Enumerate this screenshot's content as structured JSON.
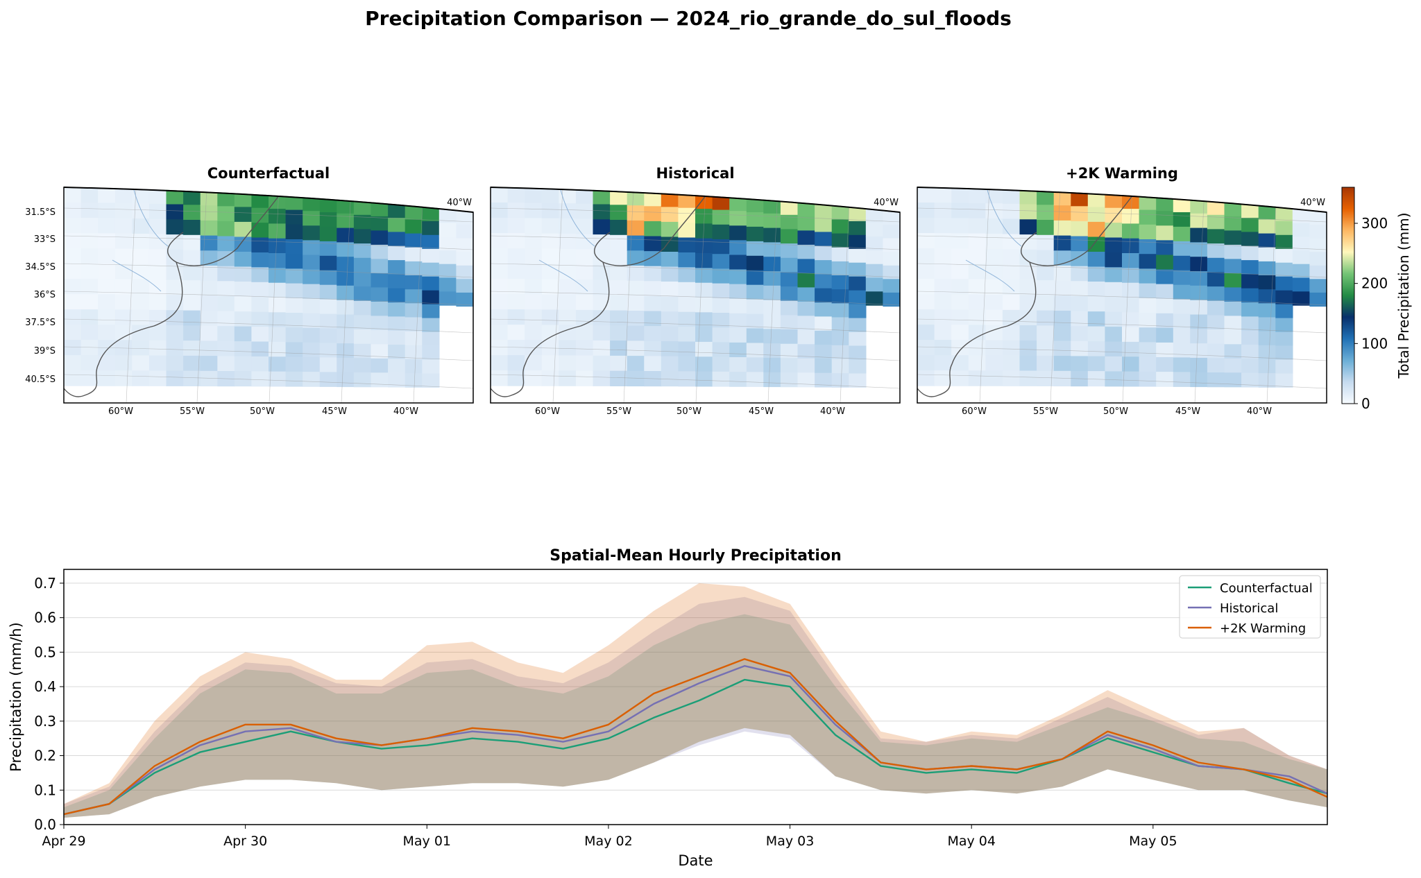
{
  "figure": {
    "title": "Precipitation Comparison — 2024_rio_grande_do_sul_floods"
  },
  "maps": {
    "panels": [
      {
        "title": "Counterfactual"
      },
      {
        "title": "Historical"
      },
      {
        "title": "+2K Warming"
      }
    ],
    "lat_ticks": [
      "31.5°S",
      "33°S",
      "34.5°S",
      "36°S",
      "37.5°S",
      "39°S",
      "40.5°S"
    ],
    "lon_ticks": [
      "60°W",
      "55°W",
      "50°W",
      "45°W",
      "40°W"
    ],
    "corner_lon_label": "40°W",
    "colorbar": {
      "label": "Total Precipitation (mm)",
      "ticks": [
        "0",
        "100",
        "200",
        "300"
      ],
      "range": [
        0,
        360
      ],
      "colors": [
        "#f7fbff",
        "#c6dbef",
        "#6baed6",
        "#2171b5",
        "#08306b",
        "#238b45",
        "#74c476",
        "#fff7bc",
        "#fdb863",
        "#e66101",
        "#a63603"
      ]
    }
  },
  "chart_data": {
    "type": "line",
    "title": "Spatial-Mean Hourly Precipitation",
    "xlabel": "Date",
    "ylabel": "Precipitation (mm/h)",
    "ylim": [
      0,
      0.74
    ],
    "yticks": [
      "0.0",
      "0.1",
      "0.2",
      "0.3",
      "0.4",
      "0.5",
      "0.6",
      "0.7"
    ],
    "xticks": [
      "Apr 29",
      "Apr 30",
      "May 01",
      "May 02",
      "May 03",
      "May 04",
      "May 05"
    ],
    "xlim_days": [
      0,
      6.96
    ],
    "grid": "horizontal",
    "legend": "top-right",
    "x_days": [
      0,
      0.25,
      0.5,
      0.75,
      1.0,
      1.25,
      1.5,
      1.75,
      2.0,
      2.25,
      2.5,
      2.75,
      3.0,
      3.25,
      3.5,
      3.75,
      4.0,
      4.25,
      4.5,
      4.75,
      5.0,
      5.25,
      5.5,
      5.75,
      6.0,
      6.25,
      6.5,
      6.75,
      6.96
    ],
    "series": [
      {
        "name": "Counterfactual",
        "color": "#1b9e77",
        "mean": [
          0.03,
          0.06,
          0.15,
          0.21,
          0.24,
          0.27,
          0.24,
          0.22,
          0.23,
          0.25,
          0.24,
          0.22,
          0.25,
          0.31,
          0.36,
          0.42,
          0.4,
          0.26,
          0.17,
          0.15,
          0.16,
          0.15,
          0.19,
          0.25,
          0.21,
          0.17,
          0.16,
          0.12,
          0.09
        ],
        "lower": [
          0.02,
          0.03,
          0.08,
          0.11,
          0.13,
          0.13,
          0.12,
          0.1,
          0.11,
          0.12,
          0.12,
          0.11,
          0.13,
          0.18,
          0.24,
          0.28,
          0.26,
          0.14,
          0.1,
          0.09,
          0.1,
          0.09,
          0.11,
          0.16,
          0.13,
          0.1,
          0.1,
          0.07,
          0.05
        ],
        "upper": [
          0.05,
          0.1,
          0.25,
          0.38,
          0.45,
          0.44,
          0.38,
          0.38,
          0.44,
          0.45,
          0.4,
          0.38,
          0.43,
          0.52,
          0.58,
          0.61,
          0.58,
          0.4,
          0.24,
          0.23,
          0.25,
          0.24,
          0.29,
          0.34,
          0.3,
          0.25,
          0.24,
          0.19,
          0.16
        ]
      },
      {
        "name": "Historical",
        "color": "#7570b3",
        "mean": [
          0.03,
          0.06,
          0.16,
          0.23,
          0.27,
          0.28,
          0.24,
          0.23,
          0.25,
          0.27,
          0.26,
          0.24,
          0.27,
          0.35,
          0.41,
          0.46,
          0.43,
          0.29,
          0.18,
          0.16,
          0.17,
          0.16,
          0.19,
          0.26,
          0.22,
          0.17,
          0.16,
          0.14,
          0.09
        ],
        "lower": [
          0.02,
          0.03,
          0.08,
          0.11,
          0.13,
          0.13,
          0.12,
          0.1,
          0.11,
          0.12,
          0.12,
          0.11,
          0.13,
          0.18,
          0.23,
          0.27,
          0.25,
          0.14,
          0.1,
          0.09,
          0.1,
          0.09,
          0.11,
          0.16,
          0.13,
          0.1,
          0.1,
          0.07,
          0.05
        ],
        "upper": [
          0.06,
          0.11,
          0.27,
          0.4,
          0.47,
          0.46,
          0.41,
          0.4,
          0.47,
          0.48,
          0.43,
          0.41,
          0.47,
          0.56,
          0.64,
          0.66,
          0.62,
          0.43,
          0.25,
          0.24,
          0.26,
          0.25,
          0.31,
          0.37,
          0.31,
          0.26,
          0.28,
          0.2,
          0.16
        ]
      },
      {
        "name": "+2K Warming",
        "color": "#d95f02",
        "mean": [
          0.03,
          0.06,
          0.17,
          0.24,
          0.29,
          0.29,
          0.25,
          0.23,
          0.25,
          0.28,
          0.27,
          0.25,
          0.29,
          0.38,
          0.43,
          0.48,
          0.44,
          0.3,
          0.18,
          0.16,
          0.17,
          0.16,
          0.19,
          0.27,
          0.23,
          0.18,
          0.16,
          0.13,
          0.08
        ],
        "lower": [
          0.02,
          0.03,
          0.08,
          0.11,
          0.13,
          0.13,
          0.12,
          0.1,
          0.11,
          0.12,
          0.12,
          0.11,
          0.13,
          0.18,
          0.24,
          0.28,
          0.26,
          0.14,
          0.1,
          0.09,
          0.1,
          0.09,
          0.11,
          0.16,
          0.13,
          0.1,
          0.1,
          0.07,
          0.05
        ],
        "upper": [
          0.06,
          0.12,
          0.3,
          0.43,
          0.5,
          0.48,
          0.42,
          0.42,
          0.52,
          0.53,
          0.47,
          0.44,
          0.52,
          0.62,
          0.7,
          0.69,
          0.64,
          0.45,
          0.27,
          0.24,
          0.27,
          0.26,
          0.32,
          0.39,
          0.33,
          0.27,
          0.28,
          0.2,
          0.16
        ]
      }
    ]
  }
}
